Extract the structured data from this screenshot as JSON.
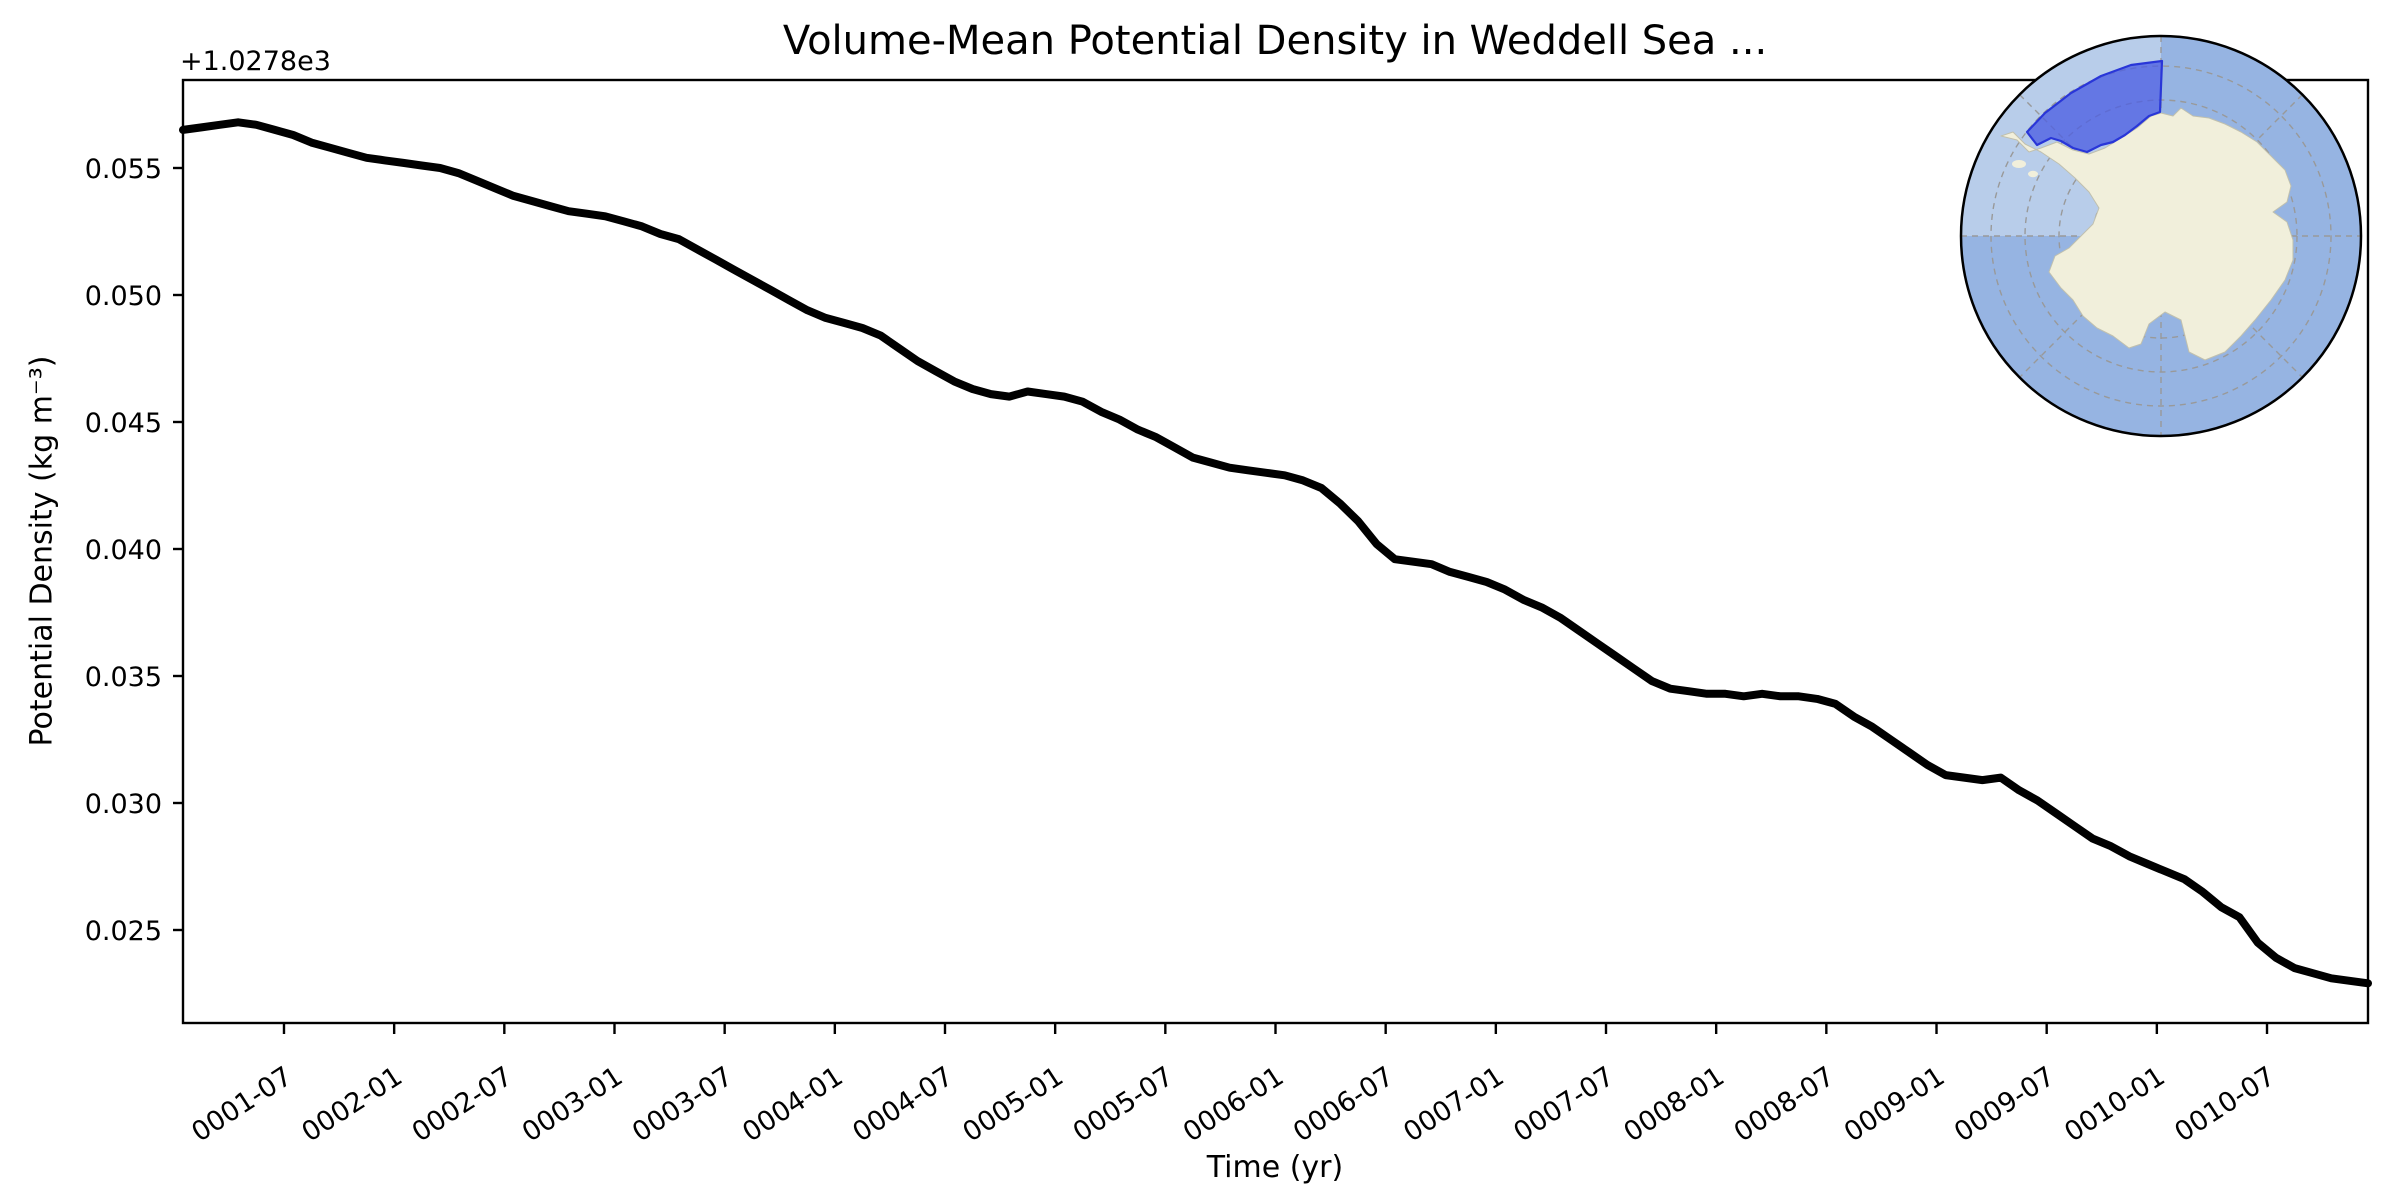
{
  "figure": {
    "background": "#ffffff"
  },
  "chart_data": {
    "type": "line",
    "title": "Volume-Mean Potential Density in Weddell Sea ...",
    "xlabel": "Time (yr)",
    "ylabel": "Potential Density (kg m⁻³)",
    "y_offset_text": "+1.0278e3",
    "y_offset": 1027.8,
    "units": "kg m-3",
    "line_color": "#000000",
    "grid": false,
    "legend": "none",
    "ylim_offset_units": [
      0.0213,
      0.0585
    ],
    "ylim_absolute": [
      1027.8213,
      1027.8585
    ],
    "y_ticks": [
      0.025,
      0.03,
      0.035,
      0.04,
      0.045,
      0.05,
      0.055
    ],
    "y_tick_labels": [
      "0.025",
      "0.030",
      "0.035",
      "0.040",
      "0.045",
      "0.050",
      "0.055"
    ],
    "x_tick_labels": [
      "0001-07",
      "0002-01",
      "0002-07",
      "0003-01",
      "0003-07",
      "0004-01",
      "0004-07",
      "0005-01",
      "0005-07",
      "0006-01",
      "0006-07",
      "0007-01",
      "0007-07",
      "0008-01",
      "0008-07",
      "0009-01",
      "0009-07",
      "0010-01",
      "0010-07"
    ],
    "sampling": "monthly means",
    "x": [
      "0001-01",
      "0001-02",
      "0001-03",
      "0001-04",
      "0001-05",
      "0001-06",
      "0001-07",
      "0001-08",
      "0001-09",
      "0001-10",
      "0001-11",
      "0001-12",
      "0002-01",
      "0002-02",
      "0002-03",
      "0002-04",
      "0002-05",
      "0002-06",
      "0002-07",
      "0002-08",
      "0002-09",
      "0002-10",
      "0002-11",
      "0002-12",
      "0003-01",
      "0003-02",
      "0003-03",
      "0003-04",
      "0003-05",
      "0003-06",
      "0003-07",
      "0003-08",
      "0003-09",
      "0003-10",
      "0003-11",
      "0003-12",
      "0004-01",
      "0004-02",
      "0004-03",
      "0004-04",
      "0004-05",
      "0004-06",
      "0004-07",
      "0004-08",
      "0004-09",
      "0004-10",
      "0004-11",
      "0004-12",
      "0005-01",
      "0005-02",
      "0005-03",
      "0005-04",
      "0005-05",
      "0005-06",
      "0005-07",
      "0005-08",
      "0005-09",
      "0005-10",
      "0005-11",
      "0005-12",
      "0006-01",
      "0006-02",
      "0006-03",
      "0006-04",
      "0006-05",
      "0006-06",
      "0006-07",
      "0006-08",
      "0006-09",
      "0006-10",
      "0006-11",
      "0006-12",
      "0007-01",
      "0007-02",
      "0007-03",
      "0007-04",
      "0007-05",
      "0007-06",
      "0007-07",
      "0007-08",
      "0007-09",
      "0007-10",
      "0007-11",
      "0007-12",
      "0008-01",
      "0008-02",
      "0008-03",
      "0008-04",
      "0008-05",
      "0008-06",
      "0008-07",
      "0008-08",
      "0008-09",
      "0008-10",
      "0008-11",
      "0008-12",
      "0009-01",
      "0009-02",
      "0009-03",
      "0009-04",
      "0009-05",
      "0009-06",
      "0009-07",
      "0009-08",
      "0009-09",
      "0009-10",
      "0009-11",
      "0009-12",
      "0010-01",
      "0010-02",
      "0010-03",
      "0010-04",
      "0010-05",
      "0010-06",
      "0010-07",
      "0010-08",
      "0010-09",
      "0010-10",
      "0010-11",
      "0010-12"
    ],
    "series": [
      {
        "name": "volume-mean potential density (offset from 1027.8)",
        "values": [
          0.0565,
          0.0566,
          0.0567,
          0.0568,
          0.0567,
          0.0565,
          0.0563,
          0.056,
          0.0558,
          0.0556,
          0.0554,
          0.0553,
          0.0552,
          0.0551,
          0.055,
          0.0548,
          0.0545,
          0.0542,
          0.0539,
          0.0537,
          0.0535,
          0.0533,
          0.0532,
          0.0531,
          0.0529,
          0.0527,
          0.0524,
          0.0522,
          0.0518,
          0.0514,
          0.051,
          0.0506,
          0.0502,
          0.0498,
          0.0494,
          0.0491,
          0.0489,
          0.0487,
          0.0484,
          0.0479,
          0.0474,
          0.047,
          0.0466,
          0.0463,
          0.0461,
          0.046,
          0.0462,
          0.0461,
          0.046,
          0.0458,
          0.0454,
          0.0451,
          0.0447,
          0.0444,
          0.044,
          0.0436,
          0.0434,
          0.0432,
          0.0431,
          0.043,
          0.0429,
          0.0427,
          0.0424,
          0.0418,
          0.0411,
          0.0402,
          0.0396,
          0.0395,
          0.0394,
          0.0391,
          0.0389,
          0.0387,
          0.0384,
          0.038,
          0.0377,
          0.0373,
          0.0368,
          0.0363,
          0.0358,
          0.0353,
          0.0348,
          0.0345,
          0.0344,
          0.0343,
          0.0343,
          0.0342,
          0.0343,
          0.0342,
          0.0342,
          0.0341,
          0.0339,
          0.0334,
          0.033,
          0.0325,
          0.032,
          0.0315,
          0.0311,
          0.031,
          0.0309,
          0.031,
          0.0305,
          0.0301,
          0.0296,
          0.0291,
          0.0286,
          0.0283,
          0.0279,
          0.0276,
          0.0273,
          0.027,
          0.0265,
          0.0259,
          0.0255,
          0.0245,
          0.0239,
          0.0235,
          0.0233,
          0.0231,
          0.023,
          0.0229
        ]
      }
    ]
  },
  "inset_map": {
    "description": "south polar stereographic map with Weddell Sea region highlighted",
    "colors": {
      "ocean": "#96b4e2",
      "ocean_light": "#c0d3ec",
      "land": "#f1efdb",
      "coast": "#c0c0ae",
      "region_fill": "#4d5fe2",
      "region_border": "#2936d8",
      "graticule": "#999999",
      "boundary": "#000000"
    }
  }
}
